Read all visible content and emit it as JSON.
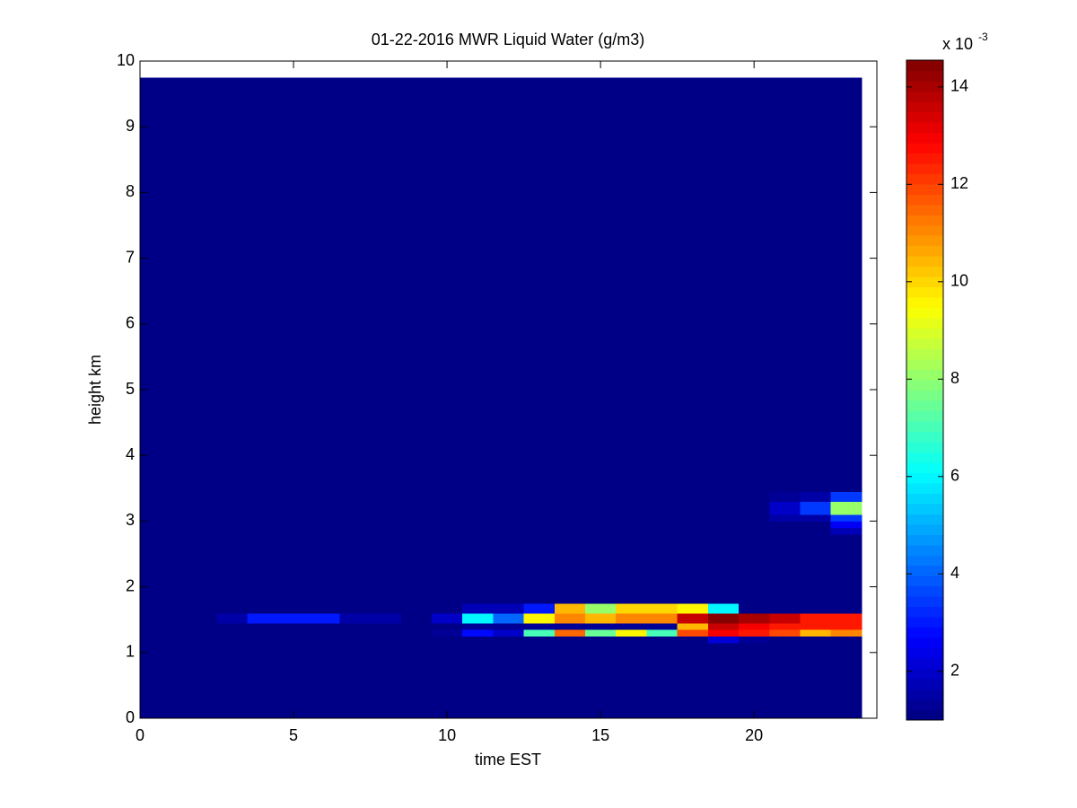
{
  "chart_data": {
    "type": "heatmap",
    "title": "01-22-2016 MWR Liquid Water (g/m3)",
    "x_label": "time EST",
    "y_label": "height km",
    "colorbar_label": "x 10",
    "colorbar_exponent": "-3",
    "xlim": [
      0,
      24
    ],
    "xticks": [
      0,
      5,
      10,
      15,
      20
    ],
    "ylim": [
      0,
      10
    ],
    "yticks": [
      0,
      1,
      2,
      3,
      4,
      5,
      6,
      7,
      8,
      9,
      10
    ],
    "clim": [
      1,
      14.55
    ],
    "cticks": [
      2,
      4,
      6,
      8,
      10,
      12,
      14
    ],
    "colormap": "jet",
    "x_edges": [
      0,
      0.5,
      1.5,
      2.5,
      3.5,
      4.5,
      5.5,
      6.5,
      7.5,
      8.5,
      9.5,
      10.5,
      11.5,
      12.5,
      13.5,
      14.5,
      15.5,
      16.5,
      17.5,
      18.5,
      19.5,
      20.5,
      21.5,
      22.5,
      23.5
    ],
    "y_edges": [
      0,
      1.15,
      1.25,
      1.35,
      1.45,
      1.6,
      1.75,
      2.8,
      2.9,
      3.0,
      3.1,
      3.3,
      3.45,
      9.75
    ],
    "z": [
      [
        1,
        1,
        1,
        1,
        1,
        1,
        1,
        1,
        1,
        1,
        1,
        1,
        1,
        1,
        1,
        1,
        1,
        1,
        1,
        1,
        1,
        1,
        1,
        1
      ],
      [
        1,
        1,
        1,
        1,
        1,
        1,
        1,
        1,
        1,
        1,
        1,
        1,
        1,
        1,
        1,
        1,
        1,
        1,
        1,
        2.2,
        1.3,
        1,
        1,
        1
      ],
      [
        1,
        1,
        1,
        1,
        1,
        1,
        1,
        1,
        1,
        1,
        1.3,
        2.8,
        2,
        7,
        11.5,
        7.5,
        9.5,
        7,
        12,
        13,
        12.5,
        12,
        10.5,
        11
      ],
      [
        1,
        1,
        1,
        1,
        1,
        1,
        1,
        1,
        1,
        1,
        1,
        1.3,
        1.3,
        1.3,
        1.3,
        1.3,
        1.3,
        1.3,
        10.5,
        13.5,
        13,
        12.5,
        12.5,
        12.5
      ],
      [
        1,
        1,
        1,
        1.5,
        3,
        3,
        3,
        1.5,
        1.5,
        1,
        2,
        6,
        4,
        9.5,
        11,
        10.5,
        11,
        11,
        13.5,
        14.5,
        14,
        13.5,
        12.5,
        12.5
      ],
      [
        1,
        1,
        1,
        1,
        1,
        1,
        1,
        1,
        1,
        1,
        1,
        1.8,
        1.8,
        3,
        10.5,
        8,
        10,
        10,
        9.5,
        6,
        1,
        1,
        1,
        1
      ],
      [
        1,
        1,
        1,
        1,
        1,
        1,
        1,
        1,
        1,
        1,
        1,
        1,
        1,
        1,
        1,
        1,
        1,
        1,
        1,
        1,
        1,
        1,
        1,
        1
      ],
      [
        1,
        1,
        1,
        1,
        1,
        1,
        1,
        1,
        1,
        1,
        1,
        1,
        1,
        1,
        1,
        1,
        1,
        1,
        1,
        1,
        1,
        1,
        1,
        1.8
      ],
      [
        1,
        1,
        1,
        1,
        1,
        1,
        1,
        1,
        1,
        1,
        1,
        1,
        1,
        1,
        1,
        1,
        1,
        1,
        1,
        1,
        1,
        1,
        1,
        2.5
      ],
      [
        1,
        1,
        1,
        1,
        1,
        1,
        1,
        1,
        1,
        1,
        1,
        1,
        1,
        1,
        1,
        1,
        1,
        1,
        1,
        1,
        1,
        1.5,
        1.5,
        3.5
      ],
      [
        1,
        1,
        1,
        1,
        1,
        1,
        1,
        1,
        1,
        1,
        1,
        1,
        1,
        1,
        1,
        1,
        1,
        1,
        1,
        1,
        1,
        2,
        3.5,
        8
      ],
      [
        1,
        1,
        1,
        1,
        1,
        1,
        1,
        1,
        1,
        1,
        1,
        1,
        1,
        1,
        1,
        1,
        1,
        1,
        1,
        1,
        1,
        1.3,
        1.5,
        3.5
      ],
      [
        1,
        1,
        1,
        1,
        1,
        1,
        1,
        1,
        1,
        1,
        1,
        1,
        1,
        1,
        1,
        1,
        1,
        1,
        1,
        1,
        1,
        1,
        1,
        1
      ]
    ]
  }
}
